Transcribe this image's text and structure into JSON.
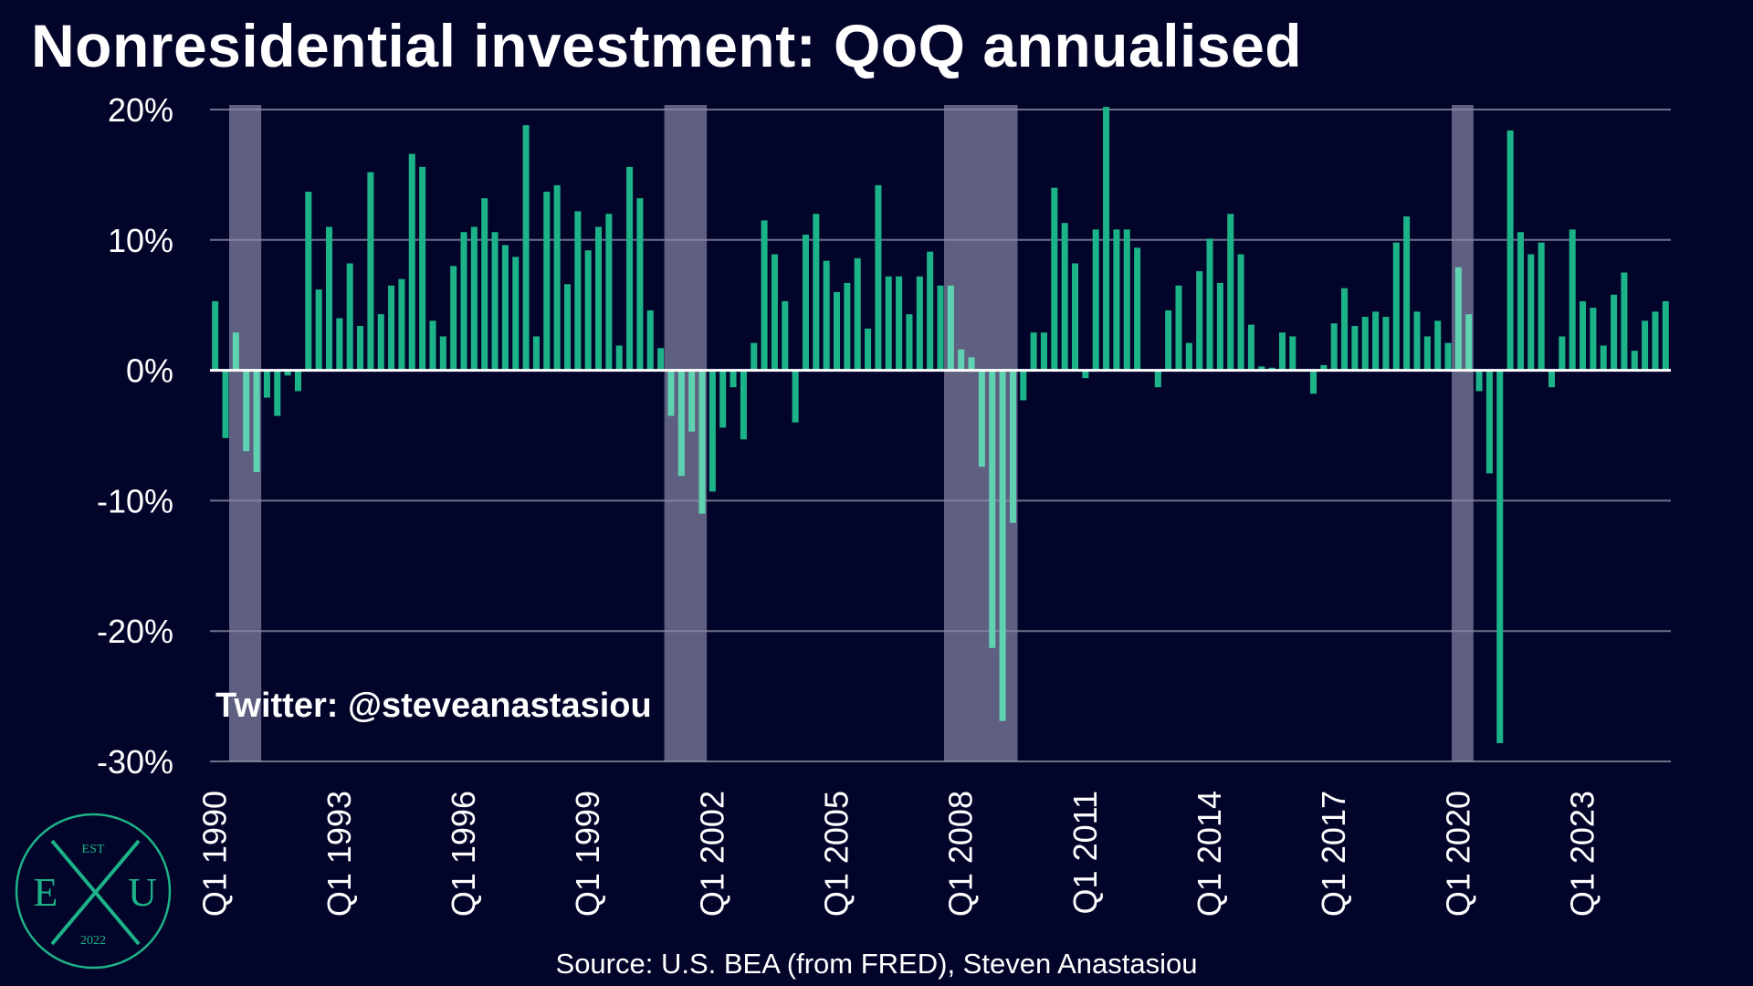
{
  "title": "Nonresidential investment: QoQ annualised",
  "source": "Source: U.S. BEA (from FRED), Steven Anastasiou",
  "watermark": "Twitter: @steveanastasiou",
  "logo": {
    "top_text": "EST",
    "left_letter": "E",
    "middle_letter": "X",
    "right_letter": "U",
    "bottom_text": "2022",
    "color": "#1db389"
  },
  "colors": {
    "background": "#03042a",
    "bar": "#1db389",
    "bar_in_recession": "#5fd3b1",
    "recession_band": "#6f7090",
    "gridline": "#8a8ba3",
    "zero_line": "#ffffff",
    "text": "#ffffff"
  },
  "chart_data": {
    "type": "bar",
    "title": "Nonresidential investment: QoQ annualised",
    "xlabel": "",
    "ylabel": "",
    "ylim": [
      -30,
      20
    ],
    "y_unit": "%",
    "y_ticks": [
      20,
      10,
      0,
      -10,
      -20,
      -30
    ],
    "y_tick_labels": [
      "20%",
      "10%",
      "0%",
      "-10%",
      "-20%",
      "-30%"
    ],
    "x_start": "Q1 1990",
    "x_tick_labels": [
      "Q1 1990",
      "Q1 1993",
      "Q1 1996",
      "Q1 1999",
      "Q1 2002",
      "Q1 2005",
      "Q1 2008",
      "Q1 2011",
      "Q1 2014",
      "Q1 2017",
      "Q1 2020",
      "Q1 2023"
    ],
    "x_tick_every_n_quarters": 12,
    "grid": true,
    "recession_bands": [
      {
        "start": "Q3 1990",
        "end": "Q1 1991"
      },
      {
        "start": "Q1 2001",
        "end": "Q4 2001"
      },
      {
        "start": "Q4 2007",
        "end": "Q2 2009"
      },
      {
        "start": "Q1 2020",
        "end": "Q2 2020"
      }
    ],
    "series": [
      {
        "values": [
          5.3,
          -5.2,
          2.9,
          -6.2,
          -7.8,
          -2.1,
          -3.5,
          -0.4,
          -1.6,
          13.7,
          6.2,
          11.0,
          4.0,
          8.2,
          3.4,
          15.2,
          4.3,
          6.5,
          7.0,
          16.6,
          15.6,
          3.8,
          2.6,
          8.0,
          10.6,
          11.0,
          13.2,
          10.6,
          9.6,
          8.7,
          18.8,
          2.6,
          13.7,
          14.2,
          6.6,
          12.2,
          9.2,
          11.0,
          12.0,
          1.9,
          15.6,
          13.2,
          4.6,
          1.7,
          -3.5,
          -8.1,
          -4.7,
          -11.0,
          -9.3,
          -4.4,
          -1.3,
          -5.3,
          2.1,
          11.5,
          8.9,
          5.3,
          -4.0,
          10.4,
          12.0,
          8.4,
          6.0,
          6.7,
          8.6,
          3.2,
          14.2,
          7.2,
          7.2,
          4.3,
          7.2,
          9.1,
          6.5,
          6.5,
          1.6,
          1.0,
          -7.4,
          -21.3,
          -26.9,
          -11.7,
          -2.3,
          2.9,
          2.9,
          14.0,
          11.3,
          8.2,
          -0.6,
          10.8,
          20.2,
          10.8,
          10.8,
          9.4,
          0.0,
          -1.3,
          4.6,
          6.5,
          2.1,
          7.6,
          10.1,
          6.7,
          12.0,
          8.9,
          3.5,
          0.3,
          0.2,
          2.9,
          2.6,
          0.0,
          -1.8,
          0.4,
          3.6,
          6.3,
          3.4,
          4.1,
          4.5,
          4.1,
          9.8,
          11.8,
          4.5,
          2.6,
          3.8,
          2.1,
          7.9,
          4.3,
          -1.6,
          -7.9,
          -28.6,
          18.4,
          10.6,
          8.9,
          9.8,
          -1.3,
          2.6,
          10.8,
          5.3,
          4.8,
          1.9,
          5.8,
          7.5,
          1.5,
          3.8,
          4.5,
          5.3
        ]
      }
    ]
  }
}
